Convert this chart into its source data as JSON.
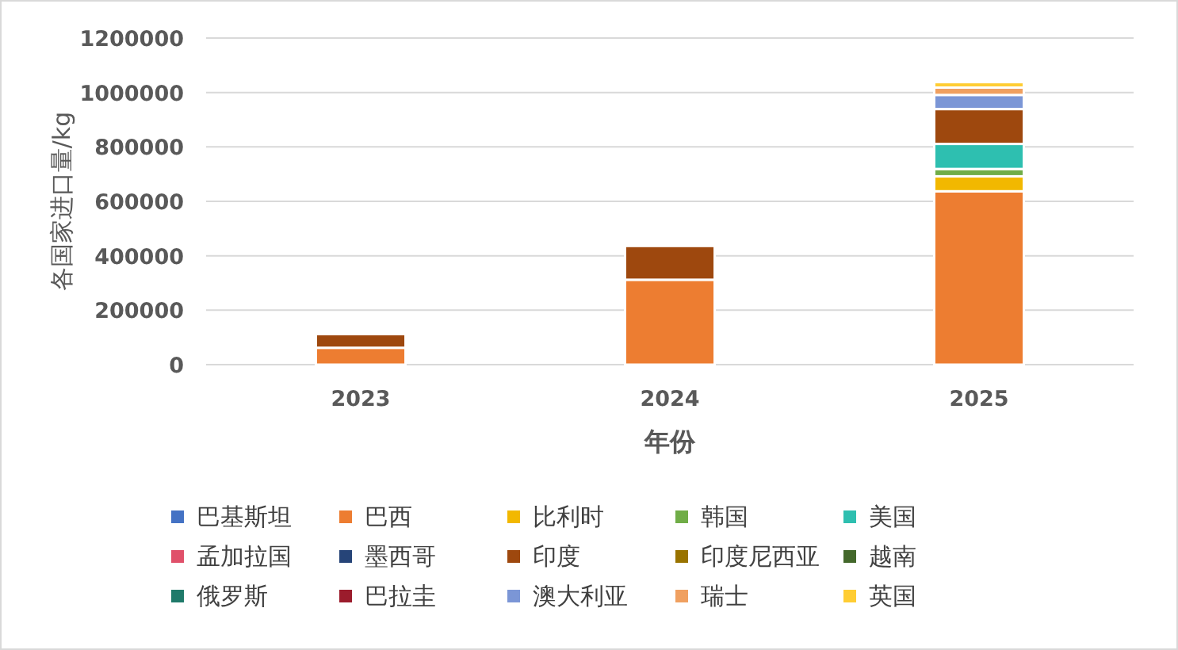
{
  "chart_data": {
    "type": "bar",
    "stacked": true,
    "xlabel": "年份",
    "ylabel": "各国家进口量/kg",
    "categories": [
      "2023",
      "2024",
      "2025"
    ],
    "ylim": [
      0,
      1200000
    ],
    "yticks": [
      0,
      200000,
      400000,
      600000,
      800000,
      1000000,
      1200000
    ],
    "grid": "y",
    "legend": "bottom",
    "series": [
      {
        "name": "巴基斯坦",
        "color": "#4472c4",
        "values": [
          0,
          0,
          0
        ]
      },
      {
        "name": "巴西",
        "color": "#ed7d31",
        "values": [
          62000,
          312000,
          637000
        ]
      },
      {
        "name": "比利时",
        "color": "#f2b800",
        "values": [
          0,
          0,
          55000
        ]
      },
      {
        "name": "韩国",
        "color": "#70ad47",
        "values": [
          0,
          0,
          27000
        ]
      },
      {
        "name": "美国",
        "color": "#2ebfb0",
        "values": [
          0,
          0,
          92000
        ]
      },
      {
        "name": "孟加拉国",
        "color": "#e0506a",
        "values": [
          0,
          0,
          0
        ]
      },
      {
        "name": "墨西哥",
        "color": "#264478",
        "values": [
          0,
          0,
          0
        ]
      },
      {
        "name": "印度",
        "color": "#9e480e",
        "values": [
          50000,
          124000,
          128000
        ]
      },
      {
        "name": "印度尼西亚",
        "color": "#997300",
        "values": [
          0,
          0,
          0
        ]
      },
      {
        "name": "越南",
        "color": "#43682b",
        "values": [
          0,
          0,
          0
        ]
      },
      {
        "name": "俄罗斯",
        "color": "#1f7a6a",
        "values": [
          0,
          0,
          0
        ]
      },
      {
        "name": "巴拉圭",
        "color": "#9b1c2c",
        "values": [
          0,
          0,
          0
        ]
      },
      {
        "name": "澳大利亚",
        "color": "#7b96d6",
        "values": [
          0,
          0,
          52000
        ]
      },
      {
        "name": "瑞士",
        "color": "#f0a060",
        "values": [
          0,
          0,
          27000
        ]
      },
      {
        "name": "英国",
        "color": "#ffcd33",
        "values": [
          0,
          0,
          20000
        ]
      }
    ]
  }
}
